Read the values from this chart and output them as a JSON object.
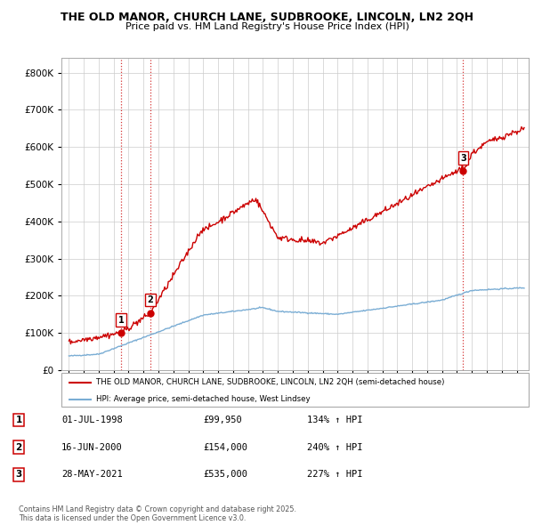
{
  "title1": "THE OLD MANOR, CHURCH LANE, SUDBROOKE, LINCOLN, LN2 2QH",
  "title2": "Price paid vs. HM Land Registry's House Price Index (HPI)",
  "ylim": [
    0,
    840000
  ],
  "yticks": [
    0,
    100000,
    200000,
    300000,
    400000,
    500000,
    600000,
    700000,
    800000
  ],
  "ytick_labels": [
    "£0",
    "£100K",
    "£200K",
    "£300K",
    "£400K",
    "£500K",
    "£600K",
    "£700K",
    "£800K"
  ],
  "xlim_start": 1994.5,
  "xlim_end": 2025.8,
  "legend_label_red": "THE OLD MANOR, CHURCH LANE, SUDBROOKE, LINCOLN, LN2 2QH (semi-detached house)",
  "legend_label_blue": "HPI: Average price, semi-detached house, West Lindsey",
  "transaction_labels": [
    "1",
    "2",
    "3"
  ],
  "transaction_dates": [
    "01-JUL-1998",
    "16-JUN-2000",
    "28-MAY-2021"
  ],
  "transaction_prices": [
    "£99,950",
    "£154,000",
    "£535,000"
  ],
  "transaction_hpi": [
    "134% ↑ HPI",
    "240% ↑ HPI",
    "227% ↑ HPI"
  ],
  "transaction_years": [
    1998.5,
    2000.46,
    2021.41
  ],
  "transaction_values": [
    99950,
    154000,
    535000
  ],
  "red_color": "#cc0000",
  "blue_color": "#7aadd4",
  "background_color": "#ffffff",
  "grid_color": "#cccccc",
  "footer": "Contains HM Land Registry data © Crown copyright and database right 2025.\nThis data is licensed under the Open Government Licence v3.0."
}
